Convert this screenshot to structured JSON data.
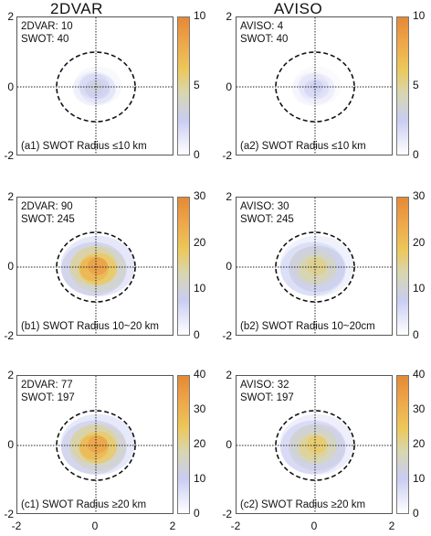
{
  "column_titles": [
    "2DVAR",
    "AVISO"
  ],
  "chart_data": [
    {
      "type": "heatmap",
      "panel": "a1",
      "caption": "(a1) SWOT Radius ≤10 km",
      "annotation": [
        "2DVAR: 10",
        "SWOT: 40"
      ],
      "xlim": [
        -2,
        2
      ],
      "ylim": [
        -2,
        2
      ],
      "colorbar": {
        "min": 0,
        "max": 10,
        "ticks": [
          "0",
          "5",
          "10"
        ]
      },
      "peak": 3
    },
    {
      "type": "heatmap",
      "panel": "a2",
      "caption": "(a2) SWOT Radius ≤10 km",
      "annotation": [
        "AVISO: 4",
        "SWOT: 40"
      ],
      "xlim": [
        -2,
        2
      ],
      "ylim": [
        -2,
        2
      ],
      "colorbar": {
        "min": 0,
        "max": 10,
        "ticks": [
          "0",
          "5",
          "10"
        ]
      },
      "peak": 2
    },
    {
      "type": "heatmap",
      "panel": "b1",
      "caption": "(b1) SWOT Radius 10~20 km",
      "annotation": [
        "2DVAR: 90",
        "SWOT: 245"
      ],
      "xlim": [
        -2,
        2
      ],
      "ylim": [
        -2,
        2
      ],
      "colorbar": {
        "min": 0,
        "max": 30,
        "ticks": [
          "0",
          "10",
          "20",
          "30"
        ]
      },
      "peak": 26
    },
    {
      "type": "heatmap",
      "panel": "b2",
      "caption": "(b2) SWOT Radius 10~20cm",
      "annotation": [
        "AVISO: 30",
        "SWOT: 245"
      ],
      "xlim": [
        -2,
        2
      ],
      "ylim": [
        -2,
        2
      ],
      "colorbar": {
        "min": 0,
        "max": 30,
        "ticks": [
          "0",
          "10",
          "20",
          "30"
        ]
      },
      "peak": 16
    },
    {
      "type": "heatmap",
      "panel": "c1",
      "caption": "(c1) SWOT Radius ≥20 km",
      "annotation": [
        "2DVAR: 77",
        "SWOT: 197"
      ],
      "xlim": [
        -2,
        2
      ],
      "ylim": [
        -2,
        2
      ],
      "colorbar": {
        "min": 0,
        "max": 40,
        "ticks": [
          "0",
          "10",
          "20",
          "30",
          "40"
        ]
      },
      "peak": 34
    },
    {
      "type": "heatmap",
      "panel": "c2",
      "caption": "(c2) SWOT Radius ≥20 km",
      "annotation": [
        "AVISO: 32",
        "SWOT: 197"
      ],
      "xlim": [
        -2,
        2
      ],
      "ylim": [
        -2,
        2
      ],
      "colorbar": {
        "min": 0,
        "max": 40,
        "ticks": [
          "0",
          "10",
          "20",
          "30",
          "40"
        ]
      },
      "peak": 24
    }
  ],
  "axis_ticks": {
    "y": [
      "2",
      "0",
      "-2"
    ],
    "x": [
      "-2",
      "0",
      "2"
    ]
  },
  "colors": {
    "low": "#c9cdf2",
    "mid": "#ecc85a",
    "high": "#e58935"
  }
}
